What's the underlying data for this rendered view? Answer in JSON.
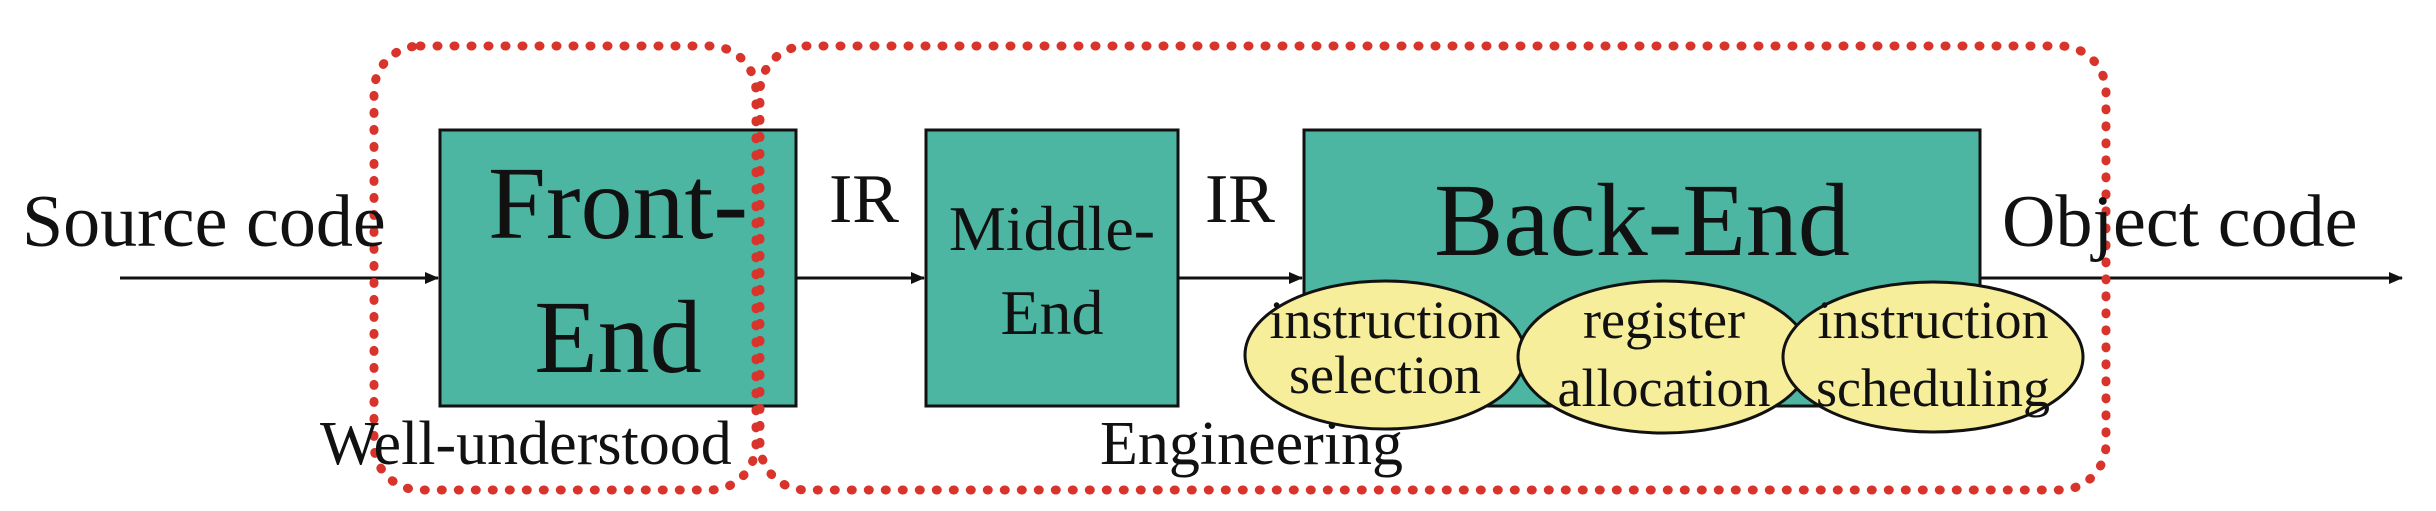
{
  "labels": {
    "source": "Source code",
    "object": "Object code",
    "ir_left": "IR",
    "ir_right": "IR",
    "well_understood": "Well-understood",
    "engineering": "Engineering"
  },
  "stages": {
    "front_end": {
      "line1": "Front-",
      "line2": "End"
    },
    "middle_end": {
      "line1": "Middle-",
      "line2": "End"
    },
    "back_end": {
      "label": "Back-End"
    }
  },
  "phases": [
    {
      "line1": "instruction",
      "line2": "selection"
    },
    {
      "line1": "register",
      "line2": "allocation"
    },
    {
      "line1": "instruction",
      "line2": "scheduling"
    }
  ],
  "colors": {
    "stage_fill": "#4db6a2",
    "phase_fill": "#f7ee9c",
    "dotted_outline": "#d9342b",
    "stroke": "#111111"
  }
}
